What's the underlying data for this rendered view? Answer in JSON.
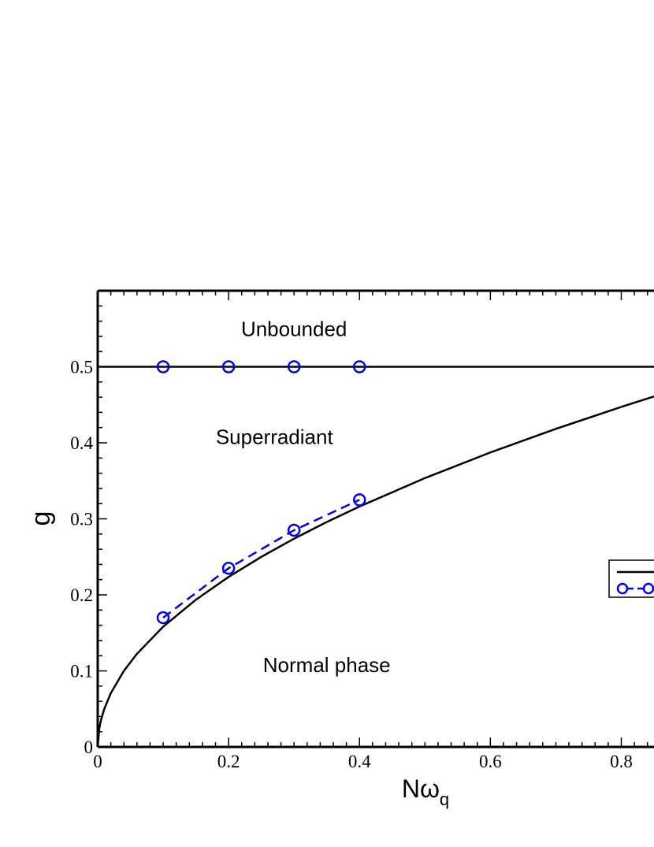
{
  "chart_data": {
    "type": "line",
    "title": "",
    "xlabel": "Nω",
    "xlabel_sub": "q",
    "ylabel": "g",
    "xlim": [
      0,
      0.85
    ],
    "ylim": [
      0,
      0.6
    ],
    "x_ticks": [
      0,
      0.2,
      0.4,
      0.6,
      0.8
    ],
    "x_tick_labels": [
      "0",
      "0.2",
      "0.4",
      "0.6",
      "0.8"
    ],
    "y_ticks": [
      0,
      0.1,
      0.2,
      0.3,
      0.4,
      0.5
    ],
    "y_tick_labels": [
      "0",
      "0.1",
      "0.2",
      "0.3",
      "0.4",
      "0.5"
    ],
    "annotations": [
      {
        "text": "Unbounded",
        "x": 0.3,
        "y": 0.55
      },
      {
        "text": "Superradiant",
        "x": 0.27,
        "y": 0.408
      },
      {
        "text": "Normal phase",
        "x": 0.35,
        "y": 0.108
      }
    ],
    "series": [
      {
        "style": "solid",
        "color": "#000000",
        "marker": "none",
        "x": [
          0,
          0.0025,
          0.005,
          0.01,
          0.02,
          0.04,
          0.06,
          0.1,
          0.15,
          0.2,
          0.25,
          0.3,
          0.35,
          0.4,
          0.5,
          0.6,
          0.7,
          0.8,
          0.85
        ],
        "y": [
          0,
          0.025,
          0.0354,
          0.05,
          0.0707,
          0.1,
          0.1225,
          0.1581,
          0.1936,
          0.2236,
          0.25,
          0.2739,
          0.2958,
          0.3162,
          0.3536,
          0.3873,
          0.4183,
          0.4472,
          0.461
        ]
      },
      {
        "style": "solid",
        "color": "#000000",
        "marker": "none",
        "x": [
          0,
          0.85
        ],
        "y": [
          0.5,
          0.5
        ]
      },
      {
        "style": "dashed",
        "color": "#0000ee",
        "marker": "open-circle",
        "x": [
          0.1,
          0.2,
          0.3,
          0.4
        ],
        "y": [
          0.17,
          0.235,
          0.285,
          0.325
        ]
      },
      {
        "style": "none",
        "color": "#0000ee",
        "marker": "open-circle",
        "x": [
          0.1,
          0.2,
          0.3,
          0.4
        ],
        "y": [
          0.5,
          0.5,
          0.5,
          0.5
        ]
      }
    ],
    "legend": {
      "placement": "right",
      "entries": [
        {
          "line": "solid",
          "color": "#000000",
          "marker": "none",
          "label": ""
        },
        {
          "line": "dashed",
          "color": "#0000ee",
          "marker": "open-circle",
          "label": ""
        }
      ]
    },
    "grid": false
  }
}
